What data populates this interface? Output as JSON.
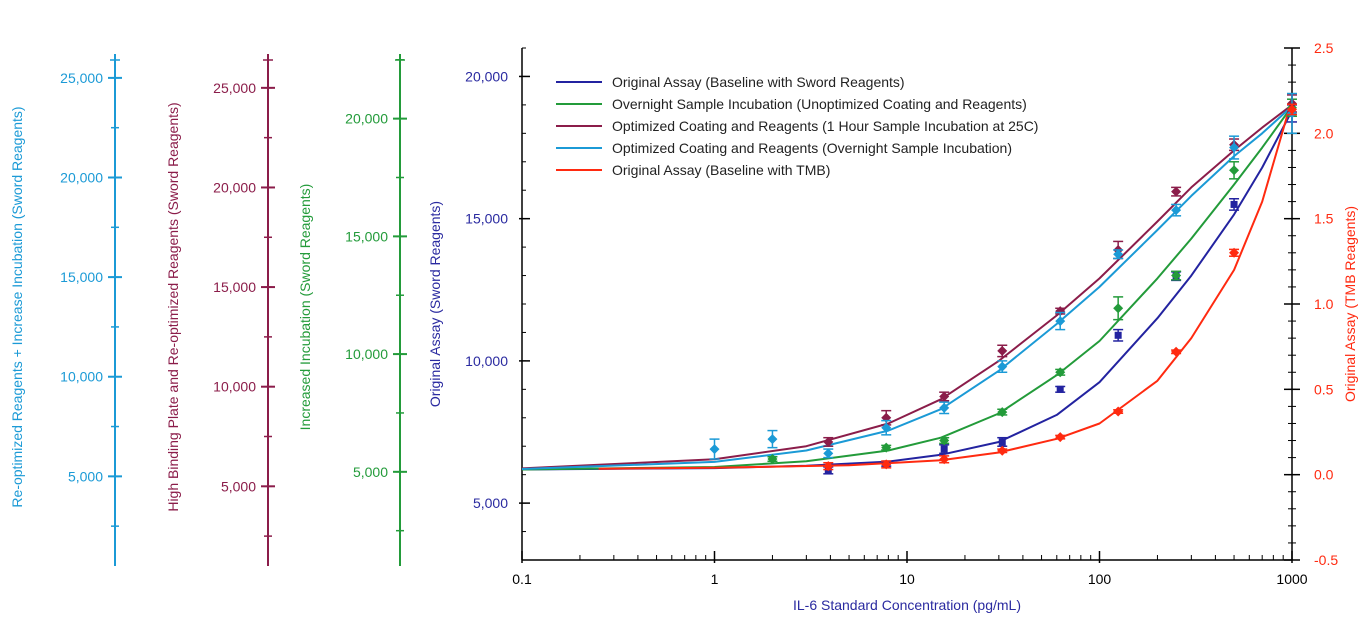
{
  "chart_data": {
    "type": "line",
    "xlabel": "IL-6 Standard Concentration (pg/mL)",
    "x_scale": "log",
    "xlim": [
      0.1,
      1000
    ],
    "x_ticks": [
      {
        "v": 0.1,
        "label": "0.1"
      },
      {
        "v": 1,
        "label": "1"
      },
      {
        "v": 10,
        "label": "10"
      },
      {
        "v": 100,
        "label": "100"
      },
      {
        "v": 1000,
        "label": "1000"
      }
    ],
    "grid": false,
    "legend_position": "top-left",
    "y_axes": [
      {
        "id": "a1",
        "label": "Re-optimized Reagents + Increase Incubation (Sword Reagents)",
        "color": "#1b9ad6",
        "range": [
          500,
          26500
        ],
        "ticks": [
          {
            "v": 5000,
            "label": "5,000"
          },
          {
            "v": 10000,
            "label": "10,000"
          },
          {
            "v": 15000,
            "label": "15,000"
          },
          {
            "v": 20000,
            "label": "20,000"
          },
          {
            "v": 25000,
            "label": "25,000"
          }
        ]
      },
      {
        "id": "a2",
        "label": "High Binding Plate and Re-optimized Reagents (Sword Reagents)",
        "color": "#8b1d4a",
        "range": [
          1000,
          27000
        ],
        "ticks": [
          {
            "v": 5000,
            "label": "5,000"
          },
          {
            "v": 10000,
            "label": "10,000"
          },
          {
            "v": 15000,
            "label": "15,000"
          },
          {
            "v": 20000,
            "label": "20,000"
          },
          {
            "v": 25000,
            "label": "25,000"
          }
        ]
      },
      {
        "id": "a3",
        "label": "Increased Incubation (Sword Reagents)",
        "color": "#239b3a",
        "range": [
          1000,
          23000
        ],
        "ticks": [
          {
            "v": 5000,
            "label": "5,000"
          },
          {
            "v": 10000,
            "label": "10,000"
          },
          {
            "v": 15000,
            "label": "15,000"
          },
          {
            "v": 20000,
            "label": "20,000"
          }
        ]
      },
      {
        "id": "main",
        "label": "Original Assay (Sword Reagents)",
        "color": "#2a2aa0",
        "range": [
          3000,
          21000
        ],
        "ticks": [
          {
            "v": 5000,
            "label": "5,000"
          },
          {
            "v": 10000,
            "label": "10,000"
          },
          {
            "v": 15000,
            "label": "15,000"
          },
          {
            "v": 20000,
            "label": "20,000"
          }
        ]
      },
      {
        "id": "right",
        "label": "Original Assay (TMB Reagents)",
        "color": "#ff2a10",
        "range": [
          -0.5,
          2.5
        ],
        "ticks": [
          {
            "v": -0.5,
            "label": "-0.5"
          },
          {
            "v": 0,
            "label": "0.0"
          },
          {
            "v": 0.5,
            "label": "0.5"
          },
          {
            "v": 1,
            "label": "1.0"
          },
          {
            "v": 1.5,
            "label": "1.5"
          },
          {
            "v": 2,
            "label": "2.0"
          },
          {
            "v": 2.5,
            "label": "2.5"
          }
        ]
      }
    ],
    "series": [
      {
        "name": "Original Assay (Baseline with Sword Reagents)",
        "color": "#2323a0",
        "marker": "square",
        "points": [
          {
            "x": 3.9,
            "y": 6150,
            "err": 120
          },
          {
            "x": 7.8,
            "y": 6380,
            "err": 80
          },
          {
            "x": 15.6,
            "y": 6900,
            "err": 150
          },
          {
            "x": 31.25,
            "y": 7150,
            "err": 150
          },
          {
            "x": 62.5,
            "y": 9000,
            "err": 100
          },
          {
            "x": 125,
            "y": 10900,
            "err": 200
          },
          {
            "x": 250,
            "y": 12980,
            "err": 150
          },
          {
            "x": 500,
            "y": 15500,
            "err": 200
          },
          {
            "x": 1000,
            "y": 18700,
            "err": 300
          }
        ],
        "curve": [
          {
            "x": 0.1,
            "y": 6180
          },
          {
            "x": 1,
            "y": 6230
          },
          {
            "x": 3,
            "y": 6310
          },
          {
            "x": 8,
            "y": 6460
          },
          {
            "x": 15,
            "y": 6700
          },
          {
            "x": 30,
            "y": 7150
          },
          {
            "x": 60,
            "y": 8100
          },
          {
            "x": 100,
            "y": 9250
          },
          {
            "x": 200,
            "y": 11500
          },
          {
            "x": 300,
            "y": 13000
          },
          {
            "x": 500,
            "y": 15150
          },
          {
            "x": 700,
            "y": 16800
          },
          {
            "x": 1000,
            "y": 18800
          }
        ]
      },
      {
        "name": "Overnight Sample Incubation (Unoptimized Coating and Reagents)",
        "color": "#239b3a",
        "marker": "diamond",
        "points": [
          {
            "x": 2,
            "y": 6550,
            "err": 80
          },
          {
            "x": 7.8,
            "y": 6950,
            "err": 80
          },
          {
            "x": 15.6,
            "y": 7200,
            "err": 100
          },
          {
            "x": 31.25,
            "y": 8200,
            "err": 100
          },
          {
            "x": 62.5,
            "y": 9600,
            "err": 100
          },
          {
            "x": 125,
            "y": 11850,
            "err": 400
          },
          {
            "x": 250,
            "y": 13000,
            "err": 150
          },
          {
            "x": 500,
            "y": 16700,
            "err": 300
          },
          {
            "x": 1000,
            "y": 18900,
            "err": 300
          }
        ],
        "curve": [
          {
            "x": 0.1,
            "y": 6180
          },
          {
            "x": 1,
            "y": 6270
          },
          {
            "x": 3,
            "y": 6470
          },
          {
            "x": 8,
            "y": 6850
          },
          {
            "x": 15,
            "y": 7300
          },
          {
            "x": 30,
            "y": 8150
          },
          {
            "x": 60,
            "y": 9500
          },
          {
            "x": 100,
            "y": 10700
          },
          {
            "x": 200,
            "y": 12900
          },
          {
            "x": 300,
            "y": 14300
          },
          {
            "x": 500,
            "y": 16200
          },
          {
            "x": 700,
            "y": 17500
          },
          {
            "x": 1000,
            "y": 18950
          }
        ]
      },
      {
        "name": "Optimized Coating and Reagents (1 Hour Sample Incubation at 25C)",
        "color": "#8b1d4a",
        "marker": "diamond",
        "points": [
          {
            "x": 3.9,
            "y": 7150,
            "err": 150
          },
          {
            "x": 7.8,
            "y": 8000,
            "err": 250
          },
          {
            "x": 15.6,
            "y": 8750,
            "err": 150
          },
          {
            "x": 31.25,
            "y": 10350,
            "err": 200
          },
          {
            "x": 62.5,
            "y": 11750,
            "err": 100
          },
          {
            "x": 125,
            "y": 13900,
            "err": 300
          },
          {
            "x": 250,
            "y": 15950,
            "err": 150
          },
          {
            "x": 500,
            "y": 17600,
            "err": 200
          },
          {
            "x": 1000,
            "y": 19050,
            "err": 300
          }
        ],
        "curve": [
          {
            "x": 0.1,
            "y": 6220
          },
          {
            "x": 1,
            "y": 6540
          },
          {
            "x": 3,
            "y": 7000
          },
          {
            "x": 8,
            "y": 7800
          },
          {
            "x": 15,
            "y": 8650
          },
          {
            "x": 30,
            "y": 10000
          },
          {
            "x": 60,
            "y": 11600
          },
          {
            "x": 100,
            "y": 12900
          },
          {
            "x": 200,
            "y": 14900
          },
          {
            "x": 300,
            "y": 16100
          },
          {
            "x": 500,
            "y": 17400
          },
          {
            "x": 700,
            "y": 18200
          },
          {
            "x": 1000,
            "y": 19000
          }
        ]
      },
      {
        "name": "Optimized Coating and Reagents (Overnight Sample Incubation)",
        "color": "#1b9ad6",
        "marker": "diamond",
        "points": [
          {
            "x": 1,
            "y": 6900,
            "err": 350
          },
          {
            "x": 2,
            "y": 7250,
            "err": 300
          },
          {
            "x": 3.9,
            "y": 6750,
            "err": 150
          },
          {
            "x": 7.8,
            "y": 7650,
            "err": 250
          },
          {
            "x": 15.6,
            "y": 8350,
            "err": 200
          },
          {
            "x": 31.25,
            "y": 9800,
            "err": 200
          },
          {
            "x": 62.5,
            "y": 11400,
            "err": 300
          },
          {
            "x": 125,
            "y": 13750,
            "err": 150
          },
          {
            "x": 250,
            "y": 15300,
            "err": 200
          },
          {
            "x": 500,
            "y": 17500,
            "err": 400
          },
          {
            "x": 1000,
            "y": 18700,
            "err": 700
          }
        ],
        "curve": [
          {
            "x": 0.1,
            "y": 6200
          },
          {
            "x": 1,
            "y": 6450
          },
          {
            "x": 3,
            "y": 6850
          },
          {
            "x": 8,
            "y": 7550
          },
          {
            "x": 15,
            "y": 8300
          },
          {
            "x": 30,
            "y": 9650
          },
          {
            "x": 60,
            "y": 11300
          },
          {
            "x": 100,
            "y": 12600
          },
          {
            "x": 200,
            "y": 14600
          },
          {
            "x": 300,
            "y": 15800
          },
          {
            "x": 500,
            "y": 17200
          },
          {
            "x": 700,
            "y": 18000
          },
          {
            "x": 1000,
            "y": 18950
          }
        ]
      },
      {
        "name": "Original Assay (Baseline with TMB)",
        "color": "#ff2a10",
        "marker": "diamond",
        "axis": "right",
        "points": [
          {
            "x": 3.9,
            "y": 0.05,
            "err": 0.02
          },
          {
            "x": 7.8,
            "y": 0.06,
            "err": 0.02
          },
          {
            "x": 15.6,
            "y": 0.09,
            "err": 0.02
          },
          {
            "x": 31.25,
            "y": 0.14,
            "err": 0.01
          },
          {
            "x": 62.5,
            "y": 0.22,
            "err": 0.01
          },
          {
            "x": 125,
            "y": 0.37,
            "err": 0.01
          },
          {
            "x": 250,
            "y": 0.72,
            "err": 0.01
          },
          {
            "x": 500,
            "y": 1.3,
            "err": 0.02
          },
          {
            "x": 1000,
            "y": 2.14,
            "err": 0.03
          }
        ],
        "curve": [
          {
            "x": 0.25,
            "y": 0.035
          },
          {
            "x": 1,
            "y": 0.04
          },
          {
            "x": 5,
            "y": 0.055
          },
          {
            "x": 15,
            "y": 0.085
          },
          {
            "x": 30,
            "y": 0.13
          },
          {
            "x": 60,
            "y": 0.21
          },
          {
            "x": 100,
            "y": 0.3
          },
          {
            "x": 200,
            "y": 0.55
          },
          {
            "x": 300,
            "y": 0.8
          },
          {
            "x": 500,
            "y": 1.2
          },
          {
            "x": 700,
            "y": 1.6
          },
          {
            "x": 1000,
            "y": 2.2
          }
        ]
      }
    ]
  }
}
